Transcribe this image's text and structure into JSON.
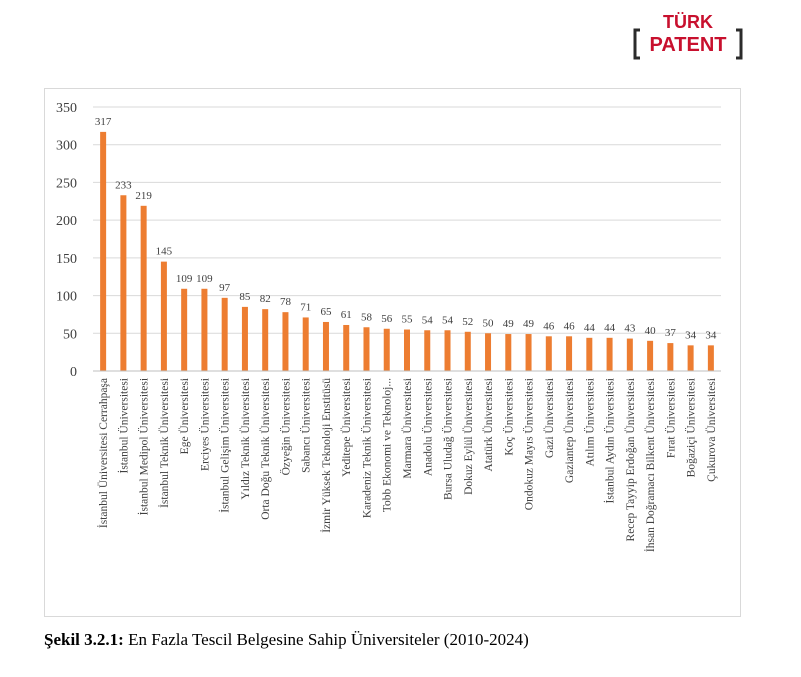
{
  "logo": {
    "line1": "TÜRK",
    "line2": "PATENT"
  },
  "caption": {
    "label": "Şekil 3.2.1:",
    "text": " En Fazla Tescil Belgesine Sahip Üniversiteler (2010-2024)"
  },
  "colors": {
    "bar": "#ED7D31",
    "grid": "#D9D9D9",
    "brand_red": "#C8102E",
    "brand_dark": "#2B2B2B"
  },
  "chart_data": {
    "type": "bar",
    "title": "",
    "xlabel": "",
    "ylabel": "",
    "ylim": [
      0,
      350
    ],
    "yticks": [
      0,
      50,
      100,
      150,
      200,
      250,
      300,
      350
    ],
    "categories": [
      "İstanbul Üniversitesi Cerrahpaşa",
      "İstanbul Üniversitesi",
      "İstanbul Medipol Üniversitesi",
      "İstanbul Teknik Üniversitesi",
      "Ege Üniversitesi",
      "Erciyes Üniversitesi",
      "İstanbul Gelişim Üniversitesi",
      "Yıldız Teknik Üniversitesi",
      "Orta Doğu Teknik Üniversitesi",
      "Özyeğin Üniversitesi",
      "Sabancı Üniversitesi",
      "İzmir Yüksek Teknoloji Enstitüsü",
      "Yeditepe Üniversitesi",
      "Karadeniz Teknik Üniversitesi",
      "Tobb Ekonomi ve Teknoloj...",
      "Marmara Üniversitesi",
      "Anadolu Üniversitesi",
      "Bursa Uludağ Üniversitesi",
      "Dokuz Eylül Üniversitesi",
      "Atatürk Üniversitesi",
      "Koç Üniversitesi",
      "Ondokuz Mayıs Üniversitesi",
      "Gazi Üniversitesi",
      "Gaziantep Üniversitesi",
      "Atılım Üniversitesi",
      "İstanbul Aydın Üniversitesi",
      "Recep Tayyip Erdoğan Üniversitesi",
      "İhsan Doğramacı Bilkent Üniversitesi",
      "Fırat Üniversitesi",
      "Boğaziçi Üniversitesi",
      "Çukurova Üniversitesi"
    ],
    "values": [
      317,
      233,
      219,
      145,
      109,
      109,
      97,
      85,
      82,
      78,
      71,
      65,
      61,
      58,
      56,
      55,
      54,
      54,
      52,
      50,
      49,
      49,
      46,
      46,
      44,
      44,
      43,
      40,
      37,
      34,
      34
    ]
  }
}
